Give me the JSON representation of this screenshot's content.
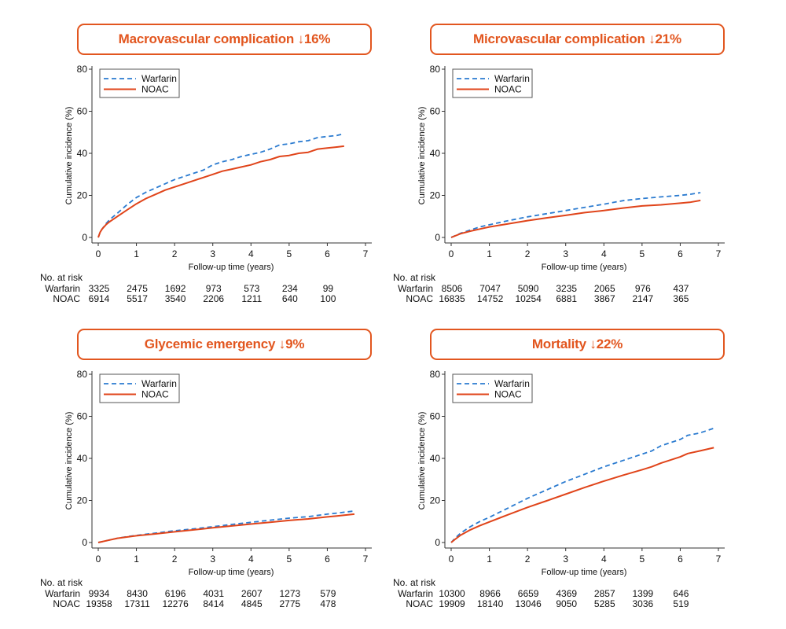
{
  "figure": {
    "accent_color": "#e2561f"
  },
  "chart_data": [
    {
      "type": "line",
      "title": "Macrovascular complication ↓16%",
      "xlabel": "Follow-up time (years)",
      "ylabel": "Cumulative incidence (%)",
      "xlim": [
        0,
        7
      ],
      "ylim": [
        0,
        80
      ],
      "xticks": [
        0,
        1,
        2,
        3,
        4,
        5,
        6,
        7
      ],
      "yticks": [
        0,
        20,
        40,
        60,
        80
      ],
      "grid": false,
      "legend": {
        "position": "top-left",
        "entries": [
          "Warfarin",
          "NOAC"
        ]
      },
      "series": [
        {
          "name": "Warfarin",
          "style": "dashed",
          "color": "#2b7bd0",
          "x": [
            0,
            0.05,
            0.1,
            0.2,
            0.3,
            0.5,
            0.75,
            1,
            1.25,
            1.5,
            1.75,
            2,
            2.25,
            2.5,
            2.75,
            3,
            3.25,
            3.5,
            3.75,
            4,
            4.25,
            4.5,
            4.75,
            5,
            5.25,
            5.5,
            5.75,
            6,
            6.25,
            6.44
          ],
          "y": [
            0,
            2.5,
            4,
            6.5,
            8.5,
            11.5,
            15.5,
            19,
            21.5,
            23.5,
            25.5,
            27.5,
            29,
            30.5,
            32,
            34.5,
            36,
            37,
            38.5,
            39.5,
            40.5,
            42,
            44,
            44.5,
            45.5,
            46,
            47.5,
            48,
            48.5,
            49.3
          ]
        },
        {
          "name": "NOAC",
          "style": "solid",
          "color": "#e0441a",
          "x": [
            0,
            0.05,
            0.1,
            0.2,
            0.3,
            0.5,
            0.75,
            1,
            1.25,
            1.5,
            1.75,
            2,
            2.25,
            2.5,
            2.75,
            3,
            3.25,
            3.5,
            3.75,
            4,
            4.25,
            4.5,
            4.75,
            5,
            5.25,
            5.5,
            5.75,
            6,
            6.25,
            6.44
          ],
          "y": [
            0,
            2.5,
            4,
            6,
            7.5,
            10,
            13,
            16,
            18.5,
            20.5,
            22.5,
            24,
            25.5,
            27,
            28.5,
            30,
            31.5,
            32.5,
            33.5,
            34.5,
            36,
            37,
            38.5,
            39,
            40,
            40.5,
            42,
            42.5,
            43,
            43.4
          ]
        }
      ],
      "at_risk": {
        "label": "No. at risk",
        "times": [
          0,
          1,
          2,
          3,
          4,
          5,
          6
        ],
        "rows": [
          {
            "group": "Warfarin",
            "values": [
              3325,
              2475,
              1692,
              973,
              573,
              234,
              99
            ]
          },
          {
            "group": "NOAC",
            "values": [
              6914,
              5517,
              3540,
              2206,
              1211,
              640,
              100
            ]
          }
        ]
      }
    },
    {
      "type": "line",
      "title": "Microvascular complication ↓21%",
      "xlabel": "Follow-up time (years)",
      "ylabel": "Cumulative incidence (%)",
      "xlim": [
        0,
        7
      ],
      "ylim": [
        0,
        80
      ],
      "xticks": [
        0,
        1,
        2,
        3,
        4,
        5,
        6,
        7
      ],
      "yticks": [
        0,
        20,
        40,
        60,
        80
      ],
      "grid": false,
      "legend": {
        "position": "top-left",
        "entries": [
          "Warfarin",
          "NOAC"
        ]
      },
      "series": [
        {
          "name": "Warfarin",
          "style": "dashed",
          "color": "#2b7bd0",
          "x": [
            0,
            0.25,
            0.5,
            0.75,
            1,
            1.5,
            2,
            2.5,
            3,
            3.5,
            4,
            4.5,
            5,
            5.5,
            6,
            6.25,
            6.53
          ],
          "y": [
            0,
            2,
            3.5,
            5,
            6,
            8,
            9.8,
            11.3,
            12.8,
            14.3,
            15.8,
            17.5,
            18.5,
            19.3,
            20,
            20.5,
            21.3
          ]
        },
        {
          "name": "NOAC",
          "style": "solid",
          "color": "#e0441a",
          "x": [
            0,
            0.25,
            0.5,
            0.75,
            1,
            1.5,
            2,
            2.5,
            3,
            3.5,
            4,
            4.5,
            5,
            5.5,
            6,
            6.25,
            6.53
          ],
          "y": [
            0,
            1.8,
            3,
            4,
            5,
            6.5,
            8,
            9.3,
            10.5,
            11.8,
            12.8,
            14,
            15,
            15.5,
            16.3,
            16.7,
            17.6
          ]
        }
      ],
      "at_risk": {
        "label": "No. at risk",
        "times": [
          0,
          1,
          2,
          3,
          4,
          5,
          6
        ],
        "rows": [
          {
            "group": "Warfarin",
            "values": [
              8506,
              7047,
              5090,
              3235,
              2065,
              976,
              437
            ]
          },
          {
            "group": "NOAC",
            "values": [
              16835,
              14752,
              10254,
              6881,
              3867,
              2147,
              365
            ]
          }
        ]
      }
    },
    {
      "type": "line",
      "title": "Glycemic emergency ↓9%",
      "xlabel": "Follow-up time (years)",
      "ylabel": "Cumulative incidence (%)",
      "xlim": [
        0,
        7
      ],
      "ylim": [
        0,
        80
      ],
      "xticks": [
        0,
        1,
        2,
        3,
        4,
        5,
        6,
        7
      ],
      "yticks": [
        0,
        20,
        40,
        60,
        80
      ],
      "grid": false,
      "legend": {
        "position": "top-left",
        "entries": [
          "Warfarin",
          "NOAC"
        ]
      },
      "series": [
        {
          "name": "Warfarin",
          "style": "dashed",
          "color": "#2b7bd0",
          "x": [
            0,
            0.25,
            0.5,
            0.75,
            1,
            1.5,
            2,
            2.5,
            3,
            3.5,
            4,
            4.5,
            5,
            5.5,
            6,
            6.25,
            6.71
          ],
          "y": [
            0,
            1,
            2,
            2.8,
            3.4,
            4.5,
            5.6,
            6.5,
            7.5,
            8.6,
            9.6,
            10.6,
            11.6,
            12.3,
            13.5,
            14,
            15
          ]
        },
        {
          "name": "NOAC",
          "style": "solid",
          "color": "#e0441a",
          "x": [
            0,
            0.25,
            0.5,
            0.75,
            1,
            1.5,
            2,
            2.5,
            3,
            3.5,
            4,
            4.5,
            5,
            5.5,
            6,
            6.25,
            6.71
          ],
          "y": [
            0,
            1,
            2,
            2.6,
            3.2,
            4.1,
            5.1,
            6,
            7,
            7.9,
            8.8,
            9.6,
            10.5,
            11.2,
            12.2,
            12.6,
            13.5
          ]
        }
      ],
      "at_risk": {
        "label": "No. at risk",
        "times": [
          0,
          1,
          2,
          3,
          4,
          5,
          6
        ],
        "rows": [
          {
            "group": "Warfarin",
            "values": [
              9934,
              8430,
              6196,
              4031,
              2607,
              1273,
              579
            ]
          },
          {
            "group": "NOAC",
            "values": [
              19358,
              17311,
              12276,
              8414,
              4845,
              2775,
              478
            ]
          }
        ]
      }
    },
    {
      "type": "line",
      "title": "Mortality ↓22%",
      "xlabel": "Follow-up time (years)",
      "ylabel": "Cumulative incidence (%)",
      "xlim": [
        0,
        7
      ],
      "ylim": [
        0,
        80
      ],
      "xticks": [
        0,
        1,
        2,
        3,
        4,
        5,
        6,
        7
      ],
      "yticks": [
        0,
        20,
        40,
        60,
        80
      ],
      "grid": false,
      "legend": {
        "position": "top-left",
        "entries": [
          "Warfarin",
          "NOAC"
        ]
      },
      "series": [
        {
          "name": "Warfarin",
          "style": "dashed",
          "color": "#2b7bd0",
          "x": [
            0,
            0.1,
            0.25,
            0.5,
            0.75,
            1,
            1.5,
            2,
            2.5,
            3,
            3.5,
            4,
            4.5,
            5,
            5.25,
            5.5,
            6,
            6.2,
            6.5,
            6.88
          ],
          "y": [
            0,
            2,
            4.5,
            7.5,
            10,
            12,
            16.5,
            21,
            25,
            29,
            32.5,
            36,
            39,
            42,
            43.5,
            46,
            49,
            51,
            52,
            54.3
          ]
        },
        {
          "name": "NOAC",
          "style": "solid",
          "color": "#e0441a",
          "x": [
            0,
            0.1,
            0.25,
            0.5,
            0.75,
            1,
            1.5,
            2,
            2.5,
            3,
            3.5,
            4,
            4.5,
            5,
            5.25,
            5.5,
            6,
            6.2,
            6.5,
            6.88
          ],
          "y": [
            0,
            1.5,
            3.5,
            6,
            8,
            9.8,
            13.3,
            16.7,
            19.8,
            23,
            26.2,
            29.2,
            32,
            34.6,
            36,
            37.8,
            40.7,
            42.3,
            43.5,
            45.1
          ]
        }
      ],
      "at_risk": {
        "label": "No. at risk",
        "times": [
          0,
          1,
          2,
          3,
          4,
          5,
          6
        ],
        "rows": [
          {
            "group": "Warfarin",
            "values": [
              10300,
              8966,
              6659,
              4369,
              2857,
              1399,
              646
            ]
          },
          {
            "group": "NOAC",
            "values": [
              19909,
              18140,
              13046,
              9050,
              5285,
              3036,
              519
            ]
          }
        ]
      }
    }
  ]
}
